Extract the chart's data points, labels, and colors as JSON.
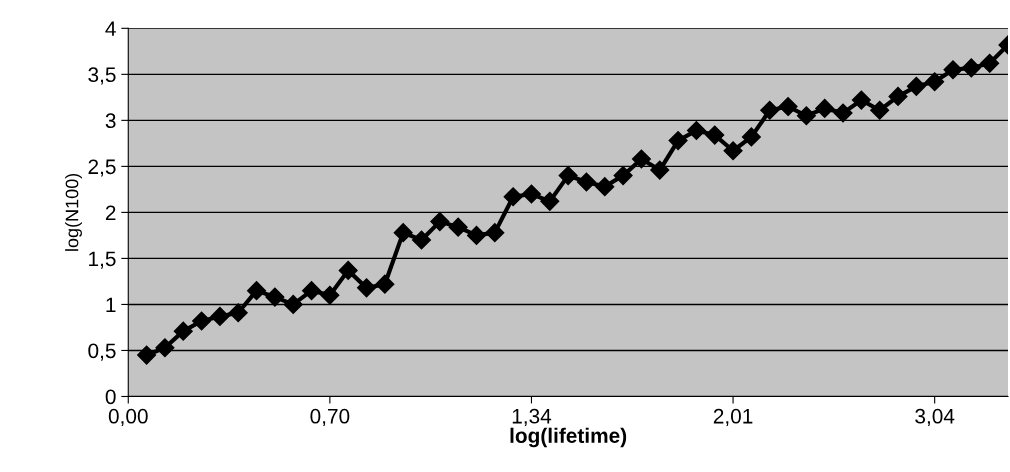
{
  "chart_data": {
    "type": "line",
    "xlabel": "log(lifetime)",
    "ylabel": "log(N100)",
    "categories": [
      "0,00",
      null,
      null,
      null,
      null,
      null,
      null,
      null,
      null,
      null,
      null,
      "0,70",
      null,
      null,
      null,
      null,
      null,
      null,
      null,
      null,
      null,
      null,
      "1,34",
      null,
      null,
      null,
      null,
      null,
      null,
      null,
      null,
      null,
      null,
      "2,01",
      null,
      null,
      null,
      null,
      null,
      null,
      null,
      null,
      null,
      null,
      "3,04",
      null,
      null,
      null,
      null
    ],
    "series": [
      {
        "color": "#000000",
        "values": [
          null,
          0.45,
          0.53,
          0.71,
          0.82,
          0.87,
          0.91,
          1.15,
          1.08,
          1.0,
          1.15,
          1.1,
          1.37,
          1.18,
          1.22,
          1.78,
          1.7,
          1.9,
          1.84,
          1.75,
          1.78,
          2.17,
          2.2,
          2.12,
          2.4,
          2.33,
          2.28,
          2.4,
          2.58,
          2.46,
          2.78,
          2.89,
          2.84,
          2.67,
          2.82,
          3.11,
          3.15,
          3.05,
          3.13,
          3.08,
          3.22,
          3.11,
          3.26,
          3.37,
          3.42,
          3.55,
          3.57,
          3.62,
          3.82
        ]
      }
    ],
    "ylim": [
      0,
      4
    ],
    "yticks": [
      0,
      {
        "value": 0.5,
        "label": "0,5"
      },
      1,
      {
        "value": 1.5,
        "label": "1,5"
      },
      2,
      {
        "value": 2.5,
        "label": "2,5"
      },
      3,
      {
        "value": 3.5,
        "label": "3,5"
      },
      4
    ],
    "grid": "y",
    "marker": "diamond",
    "line_style": "solid",
    "legend": false
  }
}
